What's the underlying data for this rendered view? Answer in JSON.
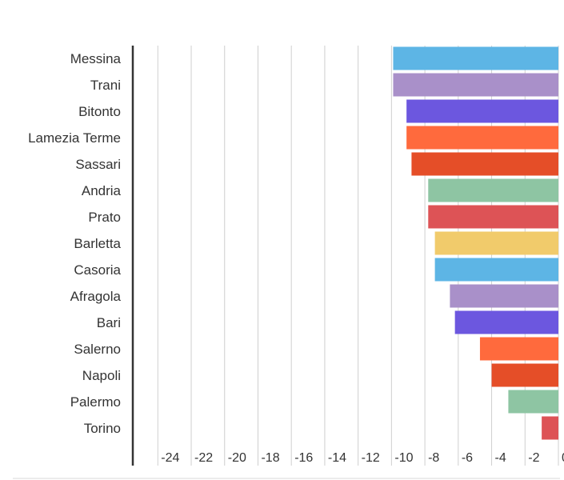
{
  "chart_data": {
    "type": "bar",
    "orientation": "horizontal",
    "categories": [
      "Messina",
      "Trani",
      "Bitonto",
      "Lamezia Terme",
      "Sassari",
      "Andria",
      "Prato",
      "Barletta",
      "Casoria",
      "Afragola",
      "Bari",
      "Salerno",
      "Napoli",
      "Palermo",
      "Torino"
    ],
    "values": [
      -9.9,
      -9.9,
      -9.1,
      -9.1,
      -8.8,
      -7.8,
      -7.8,
      -7.4,
      -7.4,
      -6.5,
      -6.2,
      -4.7,
      -4.0,
      -3.0,
      -1.0
    ],
    "xlim": [
      -25.5,
      0
    ],
    "x_ticks": [
      -24,
      -22,
      -20,
      -18,
      -16,
      -14,
      -12,
      -10,
      -8,
      -6,
      -4,
      -2,
      0
    ],
    "tick_labels": [
      "-24",
      "-22",
      "-20",
      "-18",
      "-16",
      "-14",
      "-12",
      "-10",
      "-8",
      "-6",
      "-4",
      "-2",
      "0"
    ],
    "grid": true,
    "colors": [
      "#5db5e5",
      "#a990c9",
      "#6c57df",
      "#ff6a3d",
      "#e54e28",
      "#8ec5a3",
      "#dd5356",
      "#f1cb6b",
      "#5db5e5",
      "#a990c9",
      "#6c57df",
      "#ff6a3d",
      "#e54e28",
      "#8ec5a3",
      "#dd5356"
    ],
    "title": "",
    "xlabel": "",
    "ylabel": ""
  }
}
